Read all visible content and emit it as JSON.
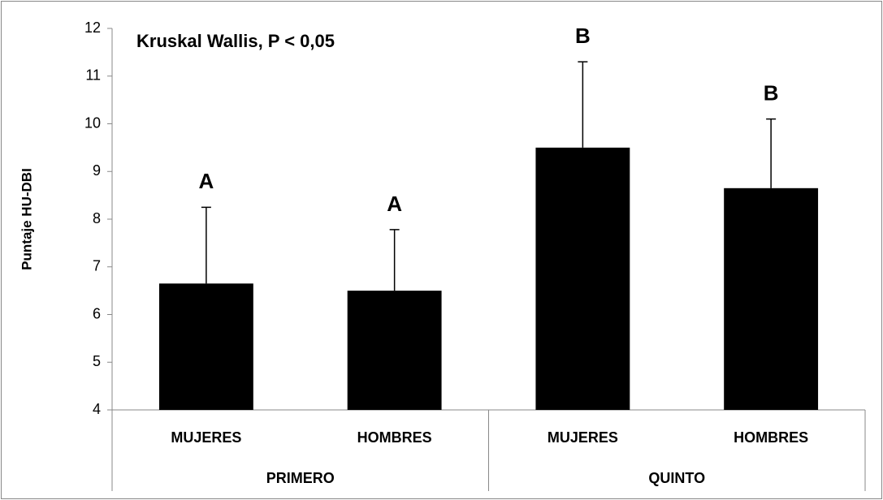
{
  "chart_data": {
    "type": "bar",
    "annotation": "Kruskal  Wallis, P < 0,05",
    "ylabel": "Puntaje HU-DBI",
    "categories": [
      "MUJERES",
      "HOMBRES",
      "MUJERES",
      "HOMBRES"
    ],
    "groups": [
      "PRIMERO",
      "QUINTO"
    ],
    "values": [
      6.65,
      6.5,
      9.5,
      8.65
    ],
    "errors": [
      1.6,
      1.28,
      1.8,
      1.45
    ],
    "letters": [
      "A",
      "A",
      "B",
      "B"
    ],
    "color": "#000000",
    "ylim": [
      4,
      12
    ],
    "yticks": [
      4,
      5,
      6,
      7,
      8,
      9,
      10,
      11,
      12
    ],
    "grid": false
  }
}
